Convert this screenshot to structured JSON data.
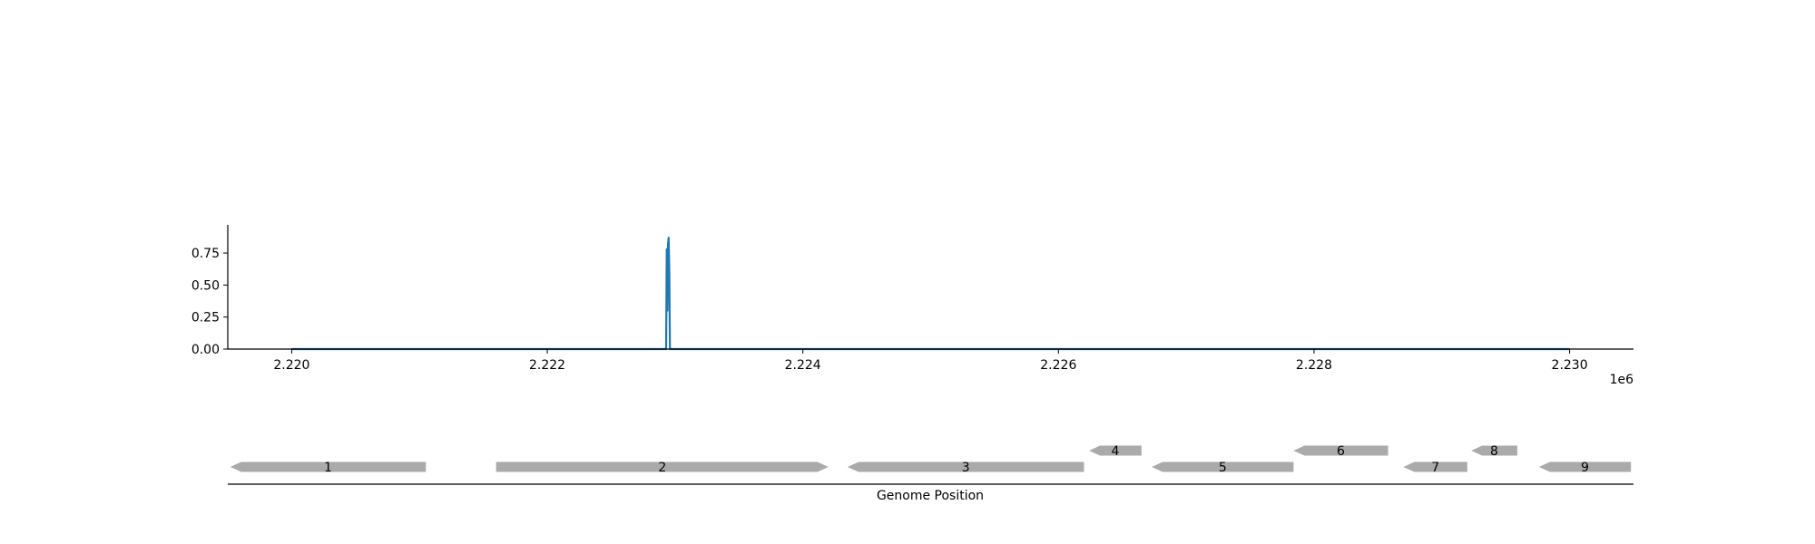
{
  "chart_data": [
    {
      "type": "line",
      "title": "",
      "xlabel": "",
      "ylabel": "",
      "xlim": [
        2219500,
        2230500
      ],
      "ylim": [
        0,
        0.97
      ],
      "x_offset_label": "1e6",
      "x_ticks": [
        {
          "value": 2220000,
          "label": "2.220"
        },
        {
          "value": 2222000,
          "label": "2.222"
        },
        {
          "value": 2224000,
          "label": "2.224"
        },
        {
          "value": 2226000,
          "label": "2.226"
        },
        {
          "value": 2228000,
          "label": "2.228"
        },
        {
          "value": 2230000,
          "label": "2.230"
        }
      ],
      "y_ticks": [
        {
          "value": 0.0,
          "label": "0.00"
        },
        {
          "value": 0.25,
          "label": "0.25"
        },
        {
          "value": 0.5,
          "label": "0.50"
        },
        {
          "value": 0.75,
          "label": "0.75"
        }
      ],
      "series": [
        {
          "color": "#1f77b4",
          "x": [
            2220000,
            2222930,
            2222935,
            2222940,
            2222945,
            2222950,
            2222955,
            2222960,
            2230000
          ],
          "y": [
            0,
            0,
            0.78,
            0.3,
            0.82,
            0.87,
            0.6,
            0,
            0
          ]
        }
      ],
      "grid": false
    },
    {
      "type": "gene_track",
      "xlabel": "Genome Position",
      "xlim": [
        2219500,
        2230500
      ],
      "gene_color": "#aaaaaa",
      "genes": [
        {
          "label": "1",
          "start": 2219520,
          "end": 2221050,
          "strand": "-",
          "row": 0
        },
        {
          "label": "2",
          "start": 2221600,
          "end": 2224200,
          "strand": "+",
          "row": 0
        },
        {
          "label": "3",
          "start": 2224350,
          "end": 2226200,
          "strand": "-",
          "row": 0
        },
        {
          "label": "4",
          "start": 2226240,
          "end": 2226650,
          "strand": "-",
          "row": 1
        },
        {
          "label": "5",
          "start": 2226730,
          "end": 2227840,
          "strand": "-",
          "row": 0
        },
        {
          "label": "6",
          "start": 2227840,
          "end": 2228580,
          "strand": "-",
          "row": 1
        },
        {
          "label": "7",
          "start": 2228700,
          "end": 2229200,
          "strand": "-",
          "row": 0
        },
        {
          "label": "8",
          "start": 2229230,
          "end": 2229590,
          "strand": "-",
          "row": 1
        },
        {
          "label": "9",
          "start": 2229760,
          "end": 2230480,
          "strand": "-",
          "row": 0
        }
      ]
    }
  ]
}
